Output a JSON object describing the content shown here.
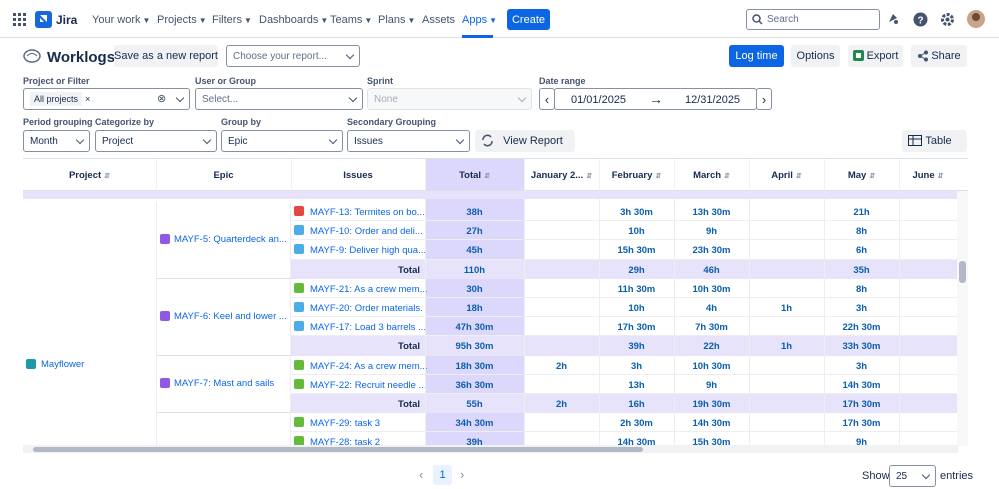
{
  "nav": {
    "logo": "Jira",
    "items": [
      "Your work",
      "Projects",
      "Filters",
      "Dashboards",
      "Teams",
      "Plans",
      "Assets",
      "Apps"
    ],
    "create": "Create",
    "search": "Search"
  },
  "toolbar": {
    "title": "Worklogs",
    "save": "Save as a new report",
    "choose": "Choose your report...",
    "log_time": "Log time",
    "options": "Options",
    "export": "Export",
    "share": "Share"
  },
  "filters": {
    "project": {
      "label": "Project or Filter",
      "chip": "All projects"
    },
    "user": {
      "label": "User or Group",
      "value": "Select..."
    },
    "sprint": {
      "label": "Sprint",
      "value": "None"
    },
    "date": {
      "label": "Date range",
      "from": "01/01/2025",
      "to": "12/31/2025"
    },
    "period": {
      "label": "Period grouping",
      "value": "Month"
    },
    "categorize": {
      "label": "Categorize by",
      "value": "Project"
    },
    "group": {
      "label": "Group by",
      "value": "Epic"
    },
    "secondary": {
      "label": "Secondary Grouping",
      "value": "Issues"
    },
    "view_report": "View Report",
    "view_mode": "Table"
  },
  "table": {
    "headers": [
      "Project",
      "Epic",
      "Issues",
      "Total",
      "January 2...",
      "February",
      "March",
      "April",
      "May",
      "June"
    ],
    "project": "Mayflower",
    "groups": [
      {
        "epic": "MAYF-5: Quarterdeck an...",
        "issues": [
          {
            "title": "MAYF-13: Termites on bo...",
            "kind": "bug",
            "total": "38h",
            "months": [
              null,
              "3h 30m",
              "13h 30m",
              null,
              "21h",
              null
            ]
          },
          {
            "title": "MAYF-10: Order and deli...",
            "kind": "task",
            "total": "27h",
            "months": [
              null,
              "10h",
              "9h",
              null,
              "8h",
              null
            ]
          },
          {
            "title": "MAYF-9: Deliver high qua...",
            "kind": "task",
            "total": "45h",
            "months": [
              null,
              "15h 30m",
              "23h 30m",
              null,
              "6h",
              null
            ]
          }
        ],
        "total_label": "Total",
        "total": "110h",
        "months": [
          null,
          "29h",
          "46h",
          null,
          "35h",
          null
        ]
      },
      {
        "epic": "MAYF-6: Keel and lower ...",
        "issues": [
          {
            "title": "MAYF-21: As a crew mem...",
            "kind": "story",
            "total": "30h",
            "months": [
              null,
              "11h 30m",
              "10h 30m",
              null,
              "8h",
              null
            ]
          },
          {
            "title": "MAYF-20: Order materials.",
            "kind": "task",
            "total": "18h",
            "months": [
              null,
              "10h",
              "4h",
              "1h",
              "3h",
              null
            ]
          },
          {
            "title": "MAYF-17: Load 3 barrels ...",
            "kind": "task",
            "total": "47h 30m",
            "months": [
              null,
              "17h 30m",
              "7h 30m",
              null,
              "22h 30m",
              null
            ]
          }
        ],
        "total_label": "Total",
        "total": "95h 30m",
        "months": [
          null,
          "39h",
          "22h",
          "1h",
          "33h 30m",
          null
        ]
      },
      {
        "epic": "MAYF-7: Mast and sails",
        "issues": [
          {
            "title": "MAYF-24: As a crew mem...",
            "kind": "story",
            "total": "18h 30m",
            "months": [
              "2h",
              "3h",
              "10h 30m",
              null,
              "3h",
              null
            ]
          },
          {
            "title": "MAYF-22: Recruit needle ...",
            "kind": "story",
            "total": "36h 30m",
            "months": [
              null,
              "13h",
              "9h",
              null,
              "14h 30m",
              null
            ]
          }
        ],
        "total_label": "Total",
        "total": "55h",
        "months": [
          "2h",
          "16h",
          "19h 30m",
          null,
          "17h 30m",
          null
        ]
      },
      {
        "issues": [
          {
            "title": "MAYF-29: task 3",
            "kind": "story",
            "total": "34h 30m",
            "months": [
              null,
              "2h 30m",
              "14h 30m",
              null,
              "17h 30m",
              null
            ]
          },
          {
            "title": "MAYF-28: task 2",
            "kind": "story",
            "total": "39h",
            "months": [
              null,
              "14h 30m",
              "15h 30m",
              null,
              "9h",
              null
            ]
          }
        ]
      }
    ]
  },
  "pagination": {
    "page": "1",
    "show": "Show",
    "page_size": "25",
    "entries": "entries"
  }
}
